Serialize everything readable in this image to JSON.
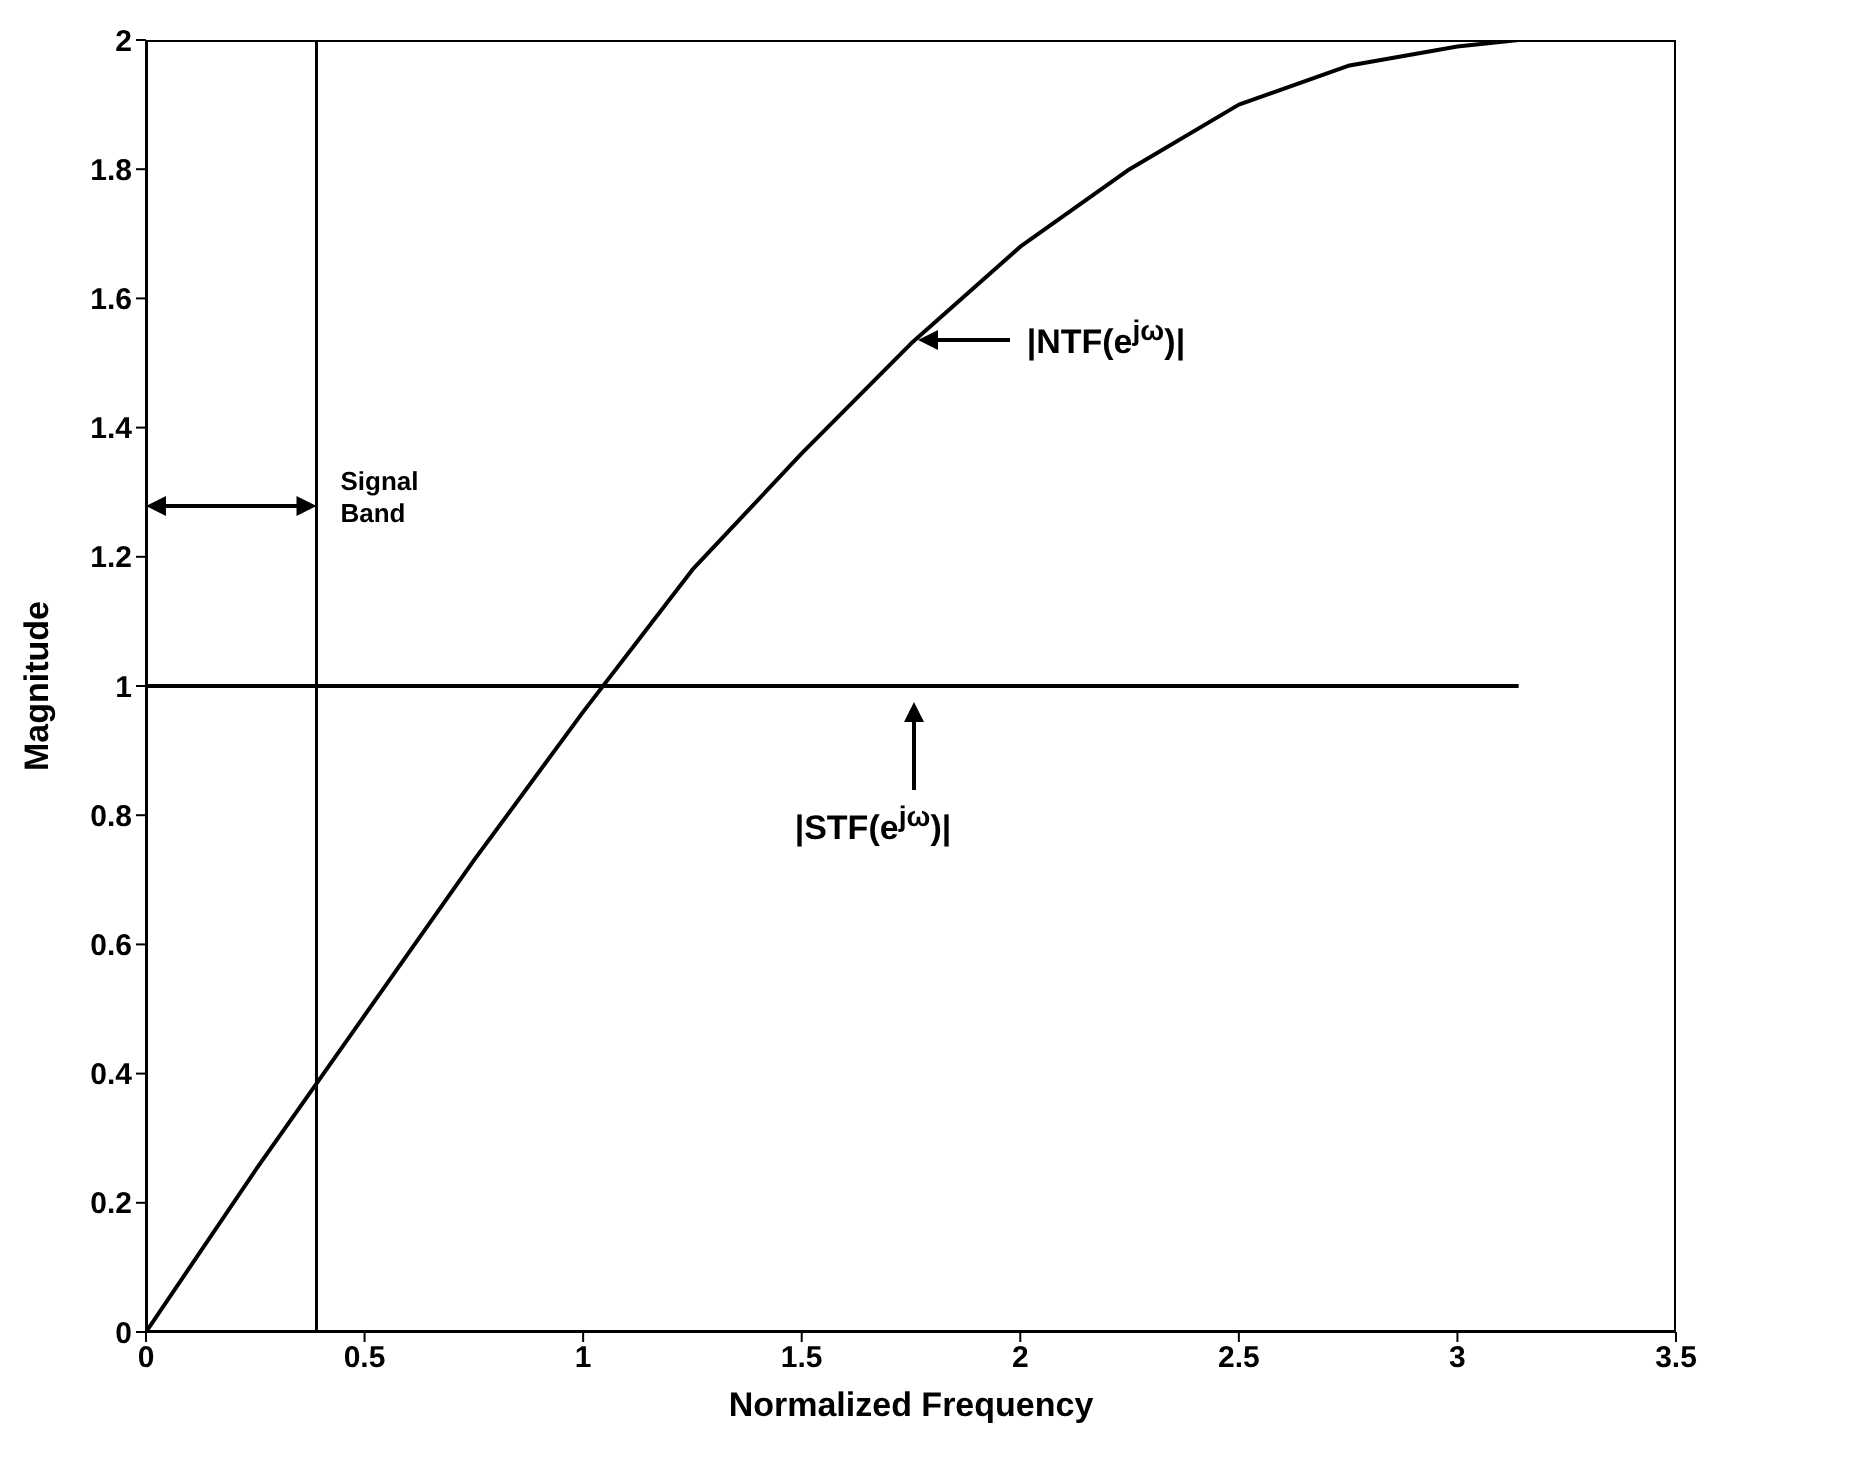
{
  "chart_data": {
    "type": "line",
    "xlabel": "Normalized Frequency",
    "ylabel": "Magnitude",
    "xlim": [
      0,
      3.5
    ],
    "xticks": [
      0,
      0.5,
      1,
      1.5,
      2,
      2.5,
      3,
      3.5
    ],
    "ylim": [
      0,
      2
    ],
    "yticks": [
      0,
      0.2,
      0.4,
      0.6,
      0.8,
      1,
      1.2,
      1.4,
      1.6,
      1.8,
      2
    ],
    "grid": false,
    "legend": false,
    "marker": "none",
    "line_style": "solid",
    "series": [
      {
        "color": "#000000",
        "x": [
          0,
          0.25,
          0.5,
          0.75,
          1,
          1.25,
          1.5,
          1.75,
          2,
          2.25,
          2.5,
          2.75,
          3,
          3.14
        ],
        "values": [
          0,
          0.25,
          0.49,
          0.73,
          0.96,
          1.18,
          1.36,
          1.53,
          1.68,
          1.8,
          1.9,
          1.96,
          1.99,
          2
        ]
      },
      {
        "color": "#000000",
        "x": [
          0,
          3.14
        ],
        "values": [
          1,
          1
        ]
      }
    ],
    "ref_lines": [
      {
        "axis": "x",
        "value": 0.39,
        "label": "Signal Band",
        "color": "#000000"
      }
    ],
    "annotations": [
      "|NTF(e$^{jω}$)|",
      "|STF(e$^{jω}$)|"
    ]
  }
}
